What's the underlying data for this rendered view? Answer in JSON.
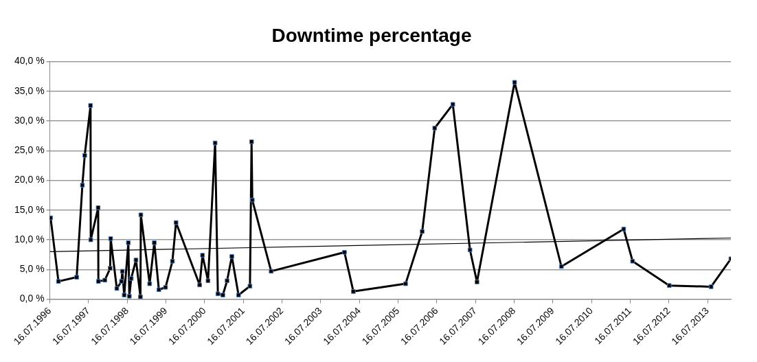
{
  "chart_data": {
    "type": "line",
    "title": "Downtime percentage",
    "xlim": [
      "1996-07-16",
      "2014-02-21"
    ],
    "xticks": [
      {
        "value": "1996-07-16",
        "label": "16.07.1996"
      },
      {
        "value": "1997-07-16",
        "label": "16.07.1997"
      },
      {
        "value": "1998-07-16",
        "label": "16.07.1998"
      },
      {
        "value": "1999-07-16",
        "label": "16.07.1999"
      },
      {
        "value": "2000-07-16",
        "label": "16.07.2000"
      },
      {
        "value": "2001-07-16",
        "label": "16.07.2001"
      },
      {
        "value": "2002-07-16",
        "label": "16.07.2002"
      },
      {
        "value": "2003-07-16",
        "label": "16.07.2003"
      },
      {
        "value": "2004-07-16",
        "label": "16.07.2004"
      },
      {
        "value": "2005-07-16",
        "label": "16.07.2005"
      },
      {
        "value": "2006-07-16",
        "label": "16.07.2006"
      },
      {
        "value": "2007-07-16",
        "label": "16.07.2007"
      },
      {
        "value": "2008-07-16",
        "label": "16.07.2008"
      },
      {
        "value": "2009-07-16",
        "label": "16.07.2009"
      },
      {
        "value": "2010-07-16",
        "label": "16.07.2010"
      },
      {
        "value": "2011-07-16",
        "label": "16.07.2011"
      },
      {
        "value": "2012-07-16",
        "label": "16.07.2012"
      },
      {
        "value": "2013-07-16",
        "label": "16.07.2013"
      }
    ],
    "ylim": [
      0,
      40
    ],
    "yticks": [
      {
        "value": 0,
        "label": "0,0 %"
      },
      {
        "value": 5,
        "label": "5,0 %"
      },
      {
        "value": 10,
        "label": "10,0 %"
      },
      {
        "value": 15,
        "label": "15,0 %"
      },
      {
        "value": 20,
        "label": "20,0 %"
      },
      {
        "value": 25,
        "label": "25,0 %"
      },
      {
        "value": 30,
        "label": "30,0 %"
      },
      {
        "value": 35,
        "label": "35,0 %"
      },
      {
        "value": 40,
        "label": "40,0 %"
      }
    ],
    "grid": "y",
    "legend": false,
    "marker": "square",
    "line_style": "solid",
    "series": [
      {
        "color": "#000000",
        "x": [
          "1996-07-23",
          "1996-10-05",
          "1997-03-26",
          "1997-05-19",
          "1997-06-10",
          "1997-08-04",
          "1997-08-06",
          "1997-10-15",
          "1997-10-17",
          "1997-12-17",
          "1998-02-05",
          "1998-02-10",
          "1998-04-09",
          "1998-05-23",
          "1998-05-31",
          "1998-06-18",
          "1998-07-27",
          "1998-08-05",
          "1998-08-23",
          "1998-10-07",
          "1998-11-18",
          "1998-11-22",
          "1999-02-13",
          "1999-03-29",
          "1999-05-11",
          "1999-07-13",
          "1999-09-16",
          "1999-10-20",
          "2000-05-30",
          "2000-06-26",
          "2000-08-17",
          "2000-10-23",
          "2000-11-18",
          "2001-01-04",
          "2001-02-13",
          "2001-03-30",
          "2001-06-01",
          "2001-09-17",
          "2001-10-02",
          "2001-10-09",
          "2002-04-05",
          "2004-02-26",
          "2004-05-20",
          "2005-09-25",
          "2006-03-01",
          "2006-06-27",
          "2006-12-15",
          "2007-05-26",
          "2007-07-31",
          "2008-07-20",
          "2009-10-05",
          "2011-05-16",
          "2011-08-08",
          "2012-07-19",
          "2013-08-18",
          "2014-02-21"
        ],
        "values": [
          13.7,
          3.0,
          3.7,
          19.2,
          24.2,
          32.6,
          10.0,
          15.4,
          3.0,
          3.2,
          5.2,
          10.2,
          1.8,
          3.0,
          4.7,
          0.7,
          9.5,
          0.5,
          3.5,
          6.6,
          0.4,
          14.2,
          2.6,
          9.5,
          1.6,
          2.0,
          6.4,
          12.9,
          2.4,
          7.4,
          3.1,
          26.3,
          0.9,
          0.7,
          3.1,
          7.2,
          0.7,
          2.2,
          26.5,
          16.7,
          4.7,
          7.9,
          1.3,
          2.6,
          11.4,
          28.8,
          32.8,
          8.3,
          2.9,
          36.5,
          5.5,
          11.8,
          6.4,
          2.3,
          2.1,
          6.8
        ]
      },
      {
        "type": "line",
        "color": "#000000",
        "marker": "none",
        "x": [
          "1996-07-16",
          "2014-02-21"
        ],
        "values": [
          8.0,
          10.3
        ]
      }
    ]
  }
}
